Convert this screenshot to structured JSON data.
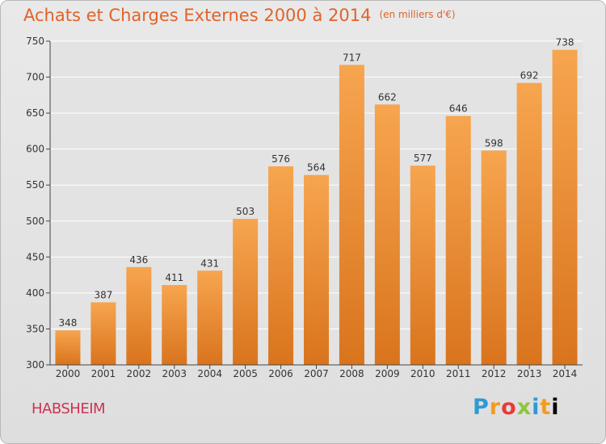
{
  "header": {
    "title": "Achats et Charges Externes 2000 à 2014",
    "unit": "(en milliers d'€)"
  },
  "footer": {
    "city": "HABSHEIM",
    "logo": [
      "P",
      "r",
      "o",
      "x",
      "i",
      "t",
      "i"
    ]
  },
  "colors": {
    "bar_light": "#f7a54f",
    "bar_dark": "#d9741d",
    "title": "#e0632a",
    "city": "#cc3355",
    "grid": "#ffffff"
  },
  "chart_data": {
    "type": "bar",
    "categories": [
      "2000",
      "2001",
      "2002",
      "2003",
      "2004",
      "2005",
      "2006",
      "2007",
      "2008",
      "2009",
      "2010",
      "2011",
      "2012",
      "2013",
      "2014"
    ],
    "values": [
      348,
      387,
      436,
      411,
      431,
      503,
      576,
      564,
      717,
      662,
      577,
      646,
      598,
      692,
      738
    ],
    "title": "Achats et Charges Externes 2000 à 2014",
    "xlabel": "",
    "ylabel": "",
    "ylim": [
      300,
      750
    ],
    "yticks": [
      300,
      350,
      400,
      450,
      500,
      550,
      600,
      650,
      700,
      750
    ],
    "grid": true
  }
}
